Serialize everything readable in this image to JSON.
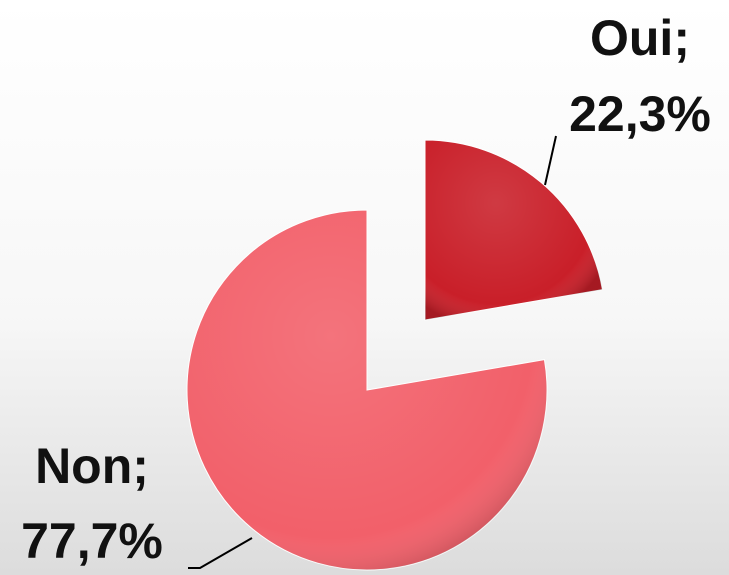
{
  "chart_data": {
    "type": "pie",
    "categories": [
      "Oui",
      "Non"
    ],
    "values": [
      22.3,
      77.7
    ],
    "value_labels": [
      "22,3%",
      "77,7%"
    ],
    "label_separator": ";",
    "colors": [
      "#c91f29",
      "#f2606a"
    ]
  }
}
